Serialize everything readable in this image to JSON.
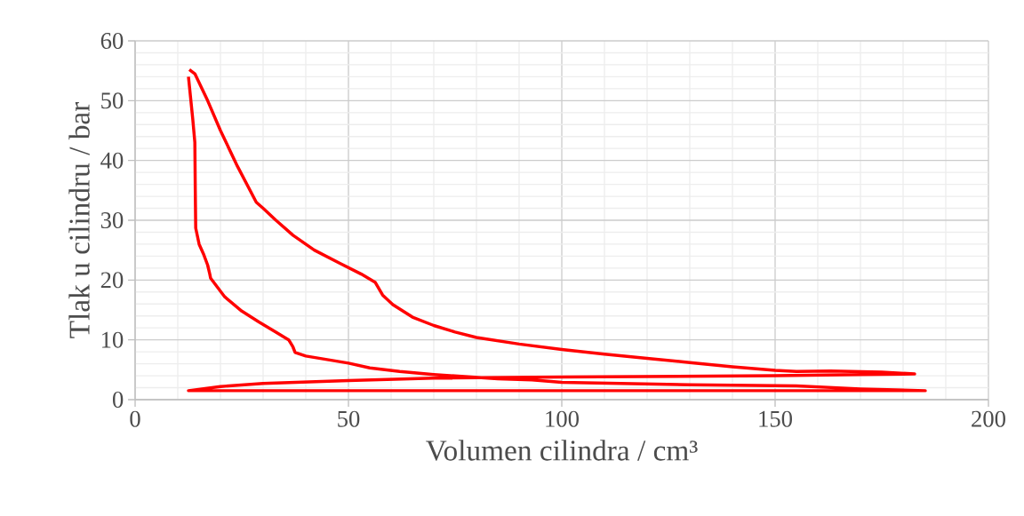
{
  "chart_data": {
    "type": "line",
    "xlabel": "Volumen cilindra / cm³",
    "ylabel": "Tlak u cilindru / bar",
    "xlim": [
      0,
      200
    ],
    "ylim": [
      0,
      60
    ],
    "xticks": [
      0,
      50,
      100,
      150,
      200
    ],
    "yticks": [
      0,
      10,
      20,
      30,
      40,
      50,
      60
    ],
    "grid": true,
    "marker": "none",
    "series": [
      {
        "color": "#ff0000",
        "x": [
          12.7,
          14,
          17,
          20,
          24,
          28.4,
          30,
          33,
          37,
          42,
          48,
          53,
          56.3,
          58,
          60.4,
          65,
          70,
          75,
          80,
          90,
          100,
          110,
          120,
          130,
          140,
          150,
          155,
          163,
          175,
          182.7,
          170,
          150,
          100,
          70,
          50,
          30,
          20,
          12.5,
          185.2,
          170,
          155,
          130,
          100,
          93,
          85,
          70,
          62,
          55,
          50,
          45,
          40,
          37.5,
          37,
          36,
          33,
          29,
          25,
          21,
          17.7,
          17.5,
          17,
          16,
          15,
          14.2,
          14.1,
          14,
          13.5,
          12.5
        ],
        "values": [
          55.2,
          54.5,
          50,
          45,
          39,
          33,
          32,
          30,
          27.5,
          25,
          22.8,
          21,
          19.6,
          17.5,
          15.9,
          13.8,
          12.4,
          11.3,
          10.4,
          9.3,
          8.4,
          7.6,
          6.9,
          6.2,
          5.5,
          4.9,
          4.7,
          4.8,
          4.6,
          4.3,
          4.2,
          4.0,
          3.8,
          3.6,
          3.2,
          2.7,
          2.2,
          1.5,
          1.5,
          1.8,
          2.3,
          2.5,
          2.9,
          3.3,
          3.5,
          4.2,
          4.7,
          5.3,
          6.1,
          6.7,
          7.3,
          7.9,
          8.8,
          10,
          11.3,
          13,
          14.8,
          17.2,
          20.3,
          21,
          22.5,
          24.4,
          26,
          28.7,
          35,
          43,
          47,
          54
        ]
      }
    ]
  }
}
